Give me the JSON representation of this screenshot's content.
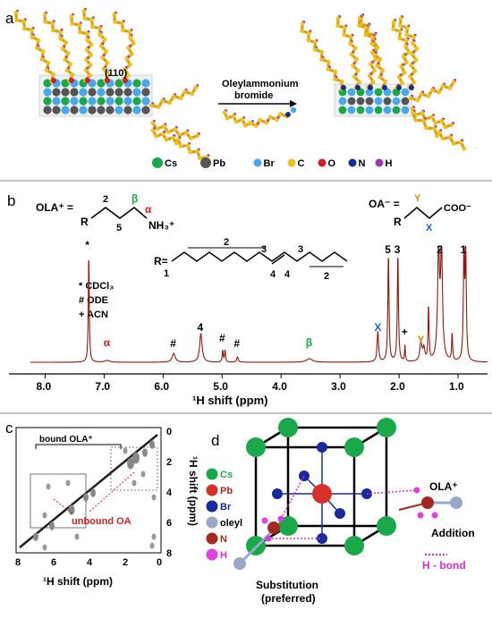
{
  "panel_a": {
    "label": "a",
    "facet": "(110)",
    "arrow_text_1": "Oleylammonium",
    "arrow_text_2": "bromide",
    "legend": [
      {
        "name": "Cs",
        "color": "#1aa84a"
      },
      {
        "name": "Pb",
        "color": "#555555"
      },
      {
        "name": "Br",
        "color": "#4aa8e8"
      },
      {
        "name": "C",
        "color": "#f0c020"
      },
      {
        "name": "O",
        "color": "#c8202a"
      },
      {
        "name": "N",
        "color": "#1a2a8a"
      },
      {
        "name": "H",
        "color": "#9a3aa8"
      }
    ]
  },
  "panel_b": {
    "label": "b",
    "ola_label": "OLA⁺ =",
    "ola_R": "R",
    "ola_num2": "2",
    "ola_num5": "5",
    "ola_beta": "β",
    "ola_alpha": "α",
    "ola_nh3": "NH₃⁺",
    "oa_label": "OA⁻ =",
    "oa_R": "R",
    "oa_gamma": "Y",
    "oa_x": "X",
    "oa_coo": "COO⁻",
    "r_label": "R=",
    "r_num1": "1",
    "r_num2a": "2",
    "r_num3a": "3",
    "r_num4a": "4",
    "r_num4b": "4",
    "r_num3b": "3",
    "r_num2b": "2",
    "legend_lines": [
      "* CDCl₃",
      "# ODE",
      "+ ACN"
    ],
    "xlabel": "¹H shift (ppm)",
    "x_ticks": [
      "8.0",
      "7.0",
      "6.0",
      "5.0",
      "4.0",
      "3.0",
      "2.0",
      "1.0"
    ],
    "peak_labels": [
      {
        "text": "*",
        "ppm": 7.26,
        "color": "#000000"
      },
      {
        "text": "α",
        "ppm": 6.95,
        "color": "#c8202a"
      },
      {
        "text": "#",
        "ppm": 5.82,
        "color": "#000000"
      },
      {
        "text": "4",
        "ppm": 5.36,
        "color": "#000000"
      },
      {
        "text": "#",
        "ppm": 4.99,
        "color": "#000000"
      },
      {
        "text": "#",
        "ppm": 4.74,
        "color": "#000000"
      },
      {
        "text": "β",
        "ppm": 3.52,
        "color": "#1aa84a"
      },
      {
        "text": "X",
        "ppm": 2.36,
        "color": "#1a60c8"
      },
      {
        "text": "5",
        "ppm": 2.18,
        "color": "#000000"
      },
      {
        "text": "3",
        "ppm": 2.02,
        "color": "#000000"
      },
      {
        "text": "+",
        "ppm": 1.9,
        "color": "#000000"
      },
      {
        "text": "Y",
        "ppm": 1.63,
        "color": "#d08a10"
      },
      {
        "text": "2",
        "ppm": 1.3,
        "color": "#000000"
      },
      {
        "text": "1",
        "ppm": 0.9,
        "color": "#000000"
      }
    ]
  },
  "panel_c": {
    "label": "c",
    "bound": "bound OLA⁺",
    "unbound": "unbound OA",
    "xlabel": "¹H shift (ppm)",
    "ylabel": "¹H shift (ppm)",
    "x_ticks": [
      "8",
      "6",
      "4",
      "2",
      "0"
    ],
    "y_ticks": [
      "0",
      "2",
      "4",
      "6",
      "8"
    ]
  },
  "panel_d": {
    "label": "d",
    "legend": [
      {
        "name": "Cs",
        "color": "#1aa84a"
      },
      {
        "name": "Pb",
        "color": "#d8302a"
      },
      {
        "name": "Br",
        "color": "#1a2a9a"
      },
      {
        "name": "oleyl",
        "color": "#9aa8c8"
      },
      {
        "name": "N",
        "color": "#a02a20"
      },
      {
        "name": "H",
        "color": "#e040e0"
      }
    ],
    "ola_label": "OLA⁺",
    "addition": "Addition",
    "hbond": "H - bond",
    "substitution_1": "Substitution",
    "substitution_2": "(preferred)"
  }
}
